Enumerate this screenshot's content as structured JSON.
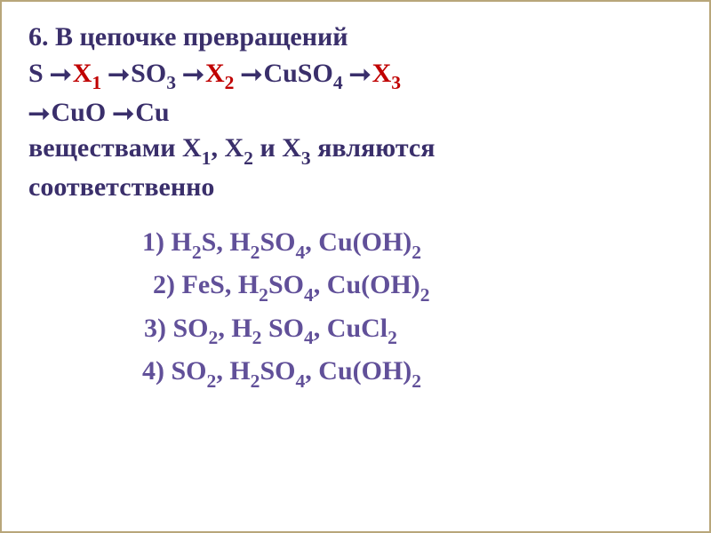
{
  "question": {
    "number": "6.",
    "intro": "В цепочке превращений",
    "chain_parts": {
      "s": "S",
      "x1": "X",
      "x1_sub": "1",
      "so3": "SO",
      "so3_sub": "3",
      "x2": "X",
      "x2_sub": "2",
      "cuso4": "CuSO",
      "cuso4_sub": "4",
      "x3": "X",
      "x3_sub": "3",
      "cuo": "CuO",
      "cu": "Cu"
    },
    "prompt1": "веществами X",
    "prompt_x1": "1",
    "prompt_comma1": ", X",
    "prompt_x2": "2",
    "prompt_and": " и X",
    "prompt_x3": "3",
    "prompt2": " являются",
    "prompt3": "соответственно",
    "arrow": "⭢"
  },
  "answers": [
    {
      "num": "1) ",
      "parts": [
        {
          "t": "H",
          "s": "2"
        },
        {
          "t": "S,  "
        },
        {
          "t": "H",
          "s": "2"
        },
        {
          "t": "SO",
          "s": "4"
        },
        {
          "t": ",  "
        },
        {
          "t": "Cu(OH)",
          "s": "2"
        }
      ],
      "indent": "indent1"
    },
    {
      "num": "2) ",
      "parts": [
        {
          "t": "FeS,  "
        },
        {
          "t": "H",
          "s": "2"
        },
        {
          "t": "SO",
          "s": "4"
        },
        {
          "t": ",  "
        },
        {
          "t": "Cu(OH)",
          "s": "2"
        }
      ],
      "indent": "indent2"
    },
    {
      "num": "3) ",
      "parts": [
        {
          "t": "SO",
          "s": "2"
        },
        {
          "t": ",  "
        },
        {
          "t": "H",
          "s": "2"
        },
        {
          "t": " SO",
          "s": "4"
        },
        {
          "t": ",  "
        },
        {
          "t": "CuCl",
          "s": "2"
        }
      ],
      "indent": "indent3"
    },
    {
      "num": "4) ",
      "parts": [
        {
          "t": "SO",
          "s": "2"
        },
        {
          "t": ",  "
        },
        {
          "t": "H",
          "s": "2"
        },
        {
          "t": "SO",
          "s": "4"
        },
        {
          "t": ",  "
        },
        {
          "t": "Cu(OH)",
          "s": "2"
        }
      ],
      "indent": "indent4"
    }
  ],
  "colors": {
    "question_text": "#3a2f6b",
    "answer_text": "#615099",
    "variable": "#c00000",
    "background": "#ffffff",
    "border": "#b8a67a"
  },
  "typography": {
    "font_family": "Georgia, Times New Roman, serif",
    "font_size_pt": 30,
    "font_weight": "bold"
  }
}
